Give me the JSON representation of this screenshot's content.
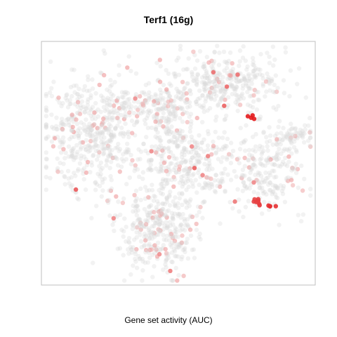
{
  "chart_data": {
    "type": "scatter",
    "title": "Terf1 (16g)",
    "xlabel": "Gene set activity (AUC)",
    "ylabel": "",
    "axes_visible": false,
    "grid": false,
    "xlim": [
      0,
      100
    ],
    "ylim": [
      0,
      100
    ],
    "colors": {
      "low": "#d9d9d9",
      "high": "#e31a1c",
      "frame": "#bfbfbf"
    },
    "background_density": 1800,
    "clusters": [
      {
        "name": "top-right-cluster",
        "cx": 68,
        "cy": 84,
        "sx": 10,
        "sy": 6,
        "n": 340
      },
      {
        "name": "left-cluster",
        "cx": 20,
        "cy": 62,
        "sx": 10,
        "sy": 12,
        "n": 520
      },
      {
        "name": "center-vertical-cluster",
        "cx": 46,
        "cy": 61,
        "sx": 3.5,
        "sy": 11,
        "n": 150
      },
      {
        "name": "upper-center-band",
        "cx": 40,
        "cy": 74,
        "sx": 12,
        "sy": 4,
        "n": 160
      },
      {
        "name": "center-cluster",
        "cx": 58,
        "cy": 50,
        "sx": 6,
        "sy": 9,
        "n": 200
      },
      {
        "name": "right-cluster",
        "cx": 82,
        "cy": 47,
        "sx": 7,
        "sy": 9,
        "n": 230
      },
      {
        "name": "far-right-lobe",
        "cx": 93,
        "cy": 62,
        "sx": 3.5,
        "sy": 2.5,
        "n": 60
      },
      {
        "name": "bottom-cluster",
        "cx": 43,
        "cy": 23,
        "sx": 8,
        "sy": 10,
        "n": 380
      }
    ],
    "high_activity_points": [
      {
        "x": 77,
        "y": 69,
        "v": 1.0
      },
      {
        "x": 80,
        "y": 33,
        "v": 0.78
      },
      {
        "x": 84,
        "y": 32,
        "v": 0.85
      },
      {
        "x": 78,
        "y": 34,
        "v": 0.75
      },
      {
        "x": 12,
        "y": 39,
        "v": 0.6
      },
      {
        "x": 56,
        "y": 48,
        "v": 0.55
      },
      {
        "x": 67,
        "y": 74,
        "v": 0.55
      },
      {
        "x": 68,
        "y": 82,
        "v": 0.5
      },
      {
        "x": 72,
        "y": 87,
        "v": 0.45
      },
      {
        "x": 63,
        "y": 88,
        "v": 0.45
      },
      {
        "x": 71,
        "y": 34,
        "v": 0.4
      },
      {
        "x": 61,
        "y": 53,
        "v": 0.35
      },
      {
        "x": 47,
        "y": 5,
        "v": 0.35
      },
      {
        "x": 26,
        "y": 27,
        "v": 0.3
      },
      {
        "x": 78,
        "y": 42,
        "v": 0.3
      },
      {
        "x": 40,
        "y": 55,
        "v": 0.3
      },
      {
        "x": 55,
        "y": 57,
        "v": 0.3
      },
      {
        "x": 59,
        "y": 45,
        "v": 0.3
      },
      {
        "x": 34,
        "y": 77,
        "v": 0.25
      },
      {
        "x": 43,
        "y": 12,
        "v": 0.25
      }
    ]
  }
}
